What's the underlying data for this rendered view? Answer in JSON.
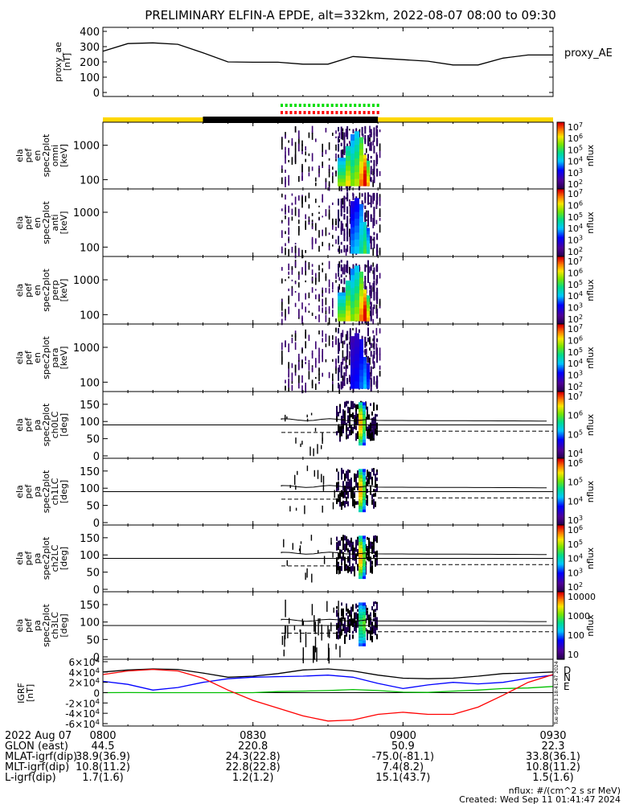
{
  "title": "PRELIMINARY ELFIN-A EPDE, alt=332km, 2022-08-07 08:00 to 09:30",
  "chart_data": {
    "type": "line",
    "panels": [
      {
        "id": "proxy_ae",
        "ylabel": "proxy_ae [nT]",
        "legend": "proxy_AE",
        "ylim": [
          0,
          420
        ],
        "ticks": [
          "0",
          "100",
          "200",
          "300",
          "400"
        ],
        "x_minutes": [
          0,
          5,
          10,
          15,
          20,
          25,
          30,
          35,
          40,
          45,
          50,
          55,
          60,
          65,
          70,
          75,
          80,
          85,
          90
        ],
        "values": [
          270,
          320,
          325,
          315,
          260,
          200,
          198,
          198,
          185,
          185,
          235,
          225,
          215,
          205,
          180,
          180,
          225,
          245,
          245
        ]
      },
      {
        "id": "en_omni",
        "ylabel": "ela pef en spec2plot omni [keV]",
        "scale": "log",
        "yticks": [
          "100",
          "1000"
        ],
        "cbar_label": "nflux",
        "cbar_ticks": [
          "10^2",
          "10^3",
          "10^4",
          "10^5",
          "10^6",
          "10^7"
        ]
      },
      {
        "id": "en_anti",
        "ylabel": "ela pef en spec2plot anti [keV]",
        "scale": "log",
        "yticks": [
          "100",
          "1000"
        ],
        "cbar_label": "nflux",
        "cbar_ticks": [
          "10^2",
          "10^3",
          "10^4",
          "10^5",
          "10^6",
          "10^7"
        ]
      },
      {
        "id": "en_perp",
        "ylabel": "ela pef en spec2plot perp [keV]",
        "scale": "log",
        "yticks": [
          "100",
          "1000"
        ],
        "cbar_label": "nflux",
        "cbar_ticks": [
          "10^2",
          "10^3",
          "10^4",
          "10^5",
          "10^6",
          "10^7"
        ]
      },
      {
        "id": "en_para",
        "ylabel": "ela pef en spec2plot para [keV]",
        "scale": "log",
        "yticks": [
          "100",
          "1000"
        ],
        "cbar_label": "nflux",
        "cbar_ticks": [
          "10^2",
          "10^3",
          "10^4",
          "10^5",
          "10^6",
          "10^7"
        ]
      },
      {
        "id": "pa_ch0",
        "ylabel": "ela pef pa spec2plot ch0LC [deg]",
        "yticks": [
          "0",
          "50",
          "100",
          "150"
        ],
        "cbar_label": "nflux",
        "cbar_ticks": [
          "10^4",
          "10^5",
          "10^6",
          "10^7"
        ]
      },
      {
        "id": "pa_ch1",
        "ylabel": "ela pef pa spec2plot ch1LC [deg]",
        "yticks": [
          "0",
          "50",
          "100",
          "150"
        ],
        "cbar_label": "nflux",
        "cbar_ticks": [
          "10^3",
          "10^4",
          "10^5",
          "10^6"
        ]
      },
      {
        "id": "pa_ch2",
        "ylabel": "ela pef pa spec2plot ch2LC [deg]",
        "yticks": [
          "0",
          "50",
          "100",
          "150"
        ],
        "cbar_label": "nflux",
        "cbar_ticks": [
          "10^2",
          "10^3",
          "10^4",
          "10^5",
          "10^6"
        ]
      },
      {
        "id": "pa_ch3",
        "ylabel": "ela pef pa spec2plot ch3LC [deg]",
        "yticks": [
          "0",
          "50",
          "100",
          "150"
        ],
        "cbar_label": "nflux",
        "cbar_ticks": [
          "10",
          "100",
          "1000",
          "10000"
        ]
      },
      {
        "id": "igrf",
        "ylabel": "IGRF [nT]",
        "ylim": [
          -60000,
          60000
        ],
        "yticks": [
          "-6×10^4",
          "-4×10^4",
          "-2×10^4",
          "0",
          "2×10^4",
          "4×10^4",
          "6×10^4"
        ],
        "series": [
          {
            "name": "N",
            "color": "#0000ff"
          },
          {
            "name": "E",
            "color": "#00c000"
          },
          {
            "name": "D",
            "color": "#ff0000"
          }
        ],
        "side_label": "Tue Sep 13 18:41:47 2024"
      }
    ],
    "x_tick_labels": [
      "0800",
      "0830",
      "0900",
      "0930"
    ],
    "x_tick_minutes": [
      0,
      30,
      60,
      90
    ],
    "x_range_minutes": [
      0,
      90
    ]
  },
  "ephemeris": {
    "date": "2022 Aug 07",
    "rows": [
      {
        "label": "GLON (east)",
        "values": [
          "44.5",
          "220.8",
          "50.9",
          "22.3"
        ]
      },
      {
        "label": "MLAT-igrf(dip)",
        "values": [
          "38.9(36.9)",
          "24.3(22.8)",
          "-75.0(-81.1)",
          "33.8(36.1)"
        ]
      },
      {
        "label": "MLT-igrf(dip)",
        "values": [
          "10.8(11.2)",
          "22.8(22.8)",
          "7.4(8.2)",
          "10.8(11.2)"
        ]
      },
      {
        "label": "L-igrf(dip)",
        "values": [
          "1.7(1.6)",
          "1.2(1.2)",
          "15.1(43.7)",
          "1.5(1.6)"
        ]
      }
    ]
  },
  "footer": {
    "units": "nflux: #/(cm^2 s sr MeV)",
    "created": "Created: Wed Sep 11 01:41:47 2024"
  },
  "colors": {
    "sunlit": "#ffd800",
    "eclipse": "#000000",
    "marker_green": "#00dd00",
    "marker_red": "#ff0000"
  }
}
